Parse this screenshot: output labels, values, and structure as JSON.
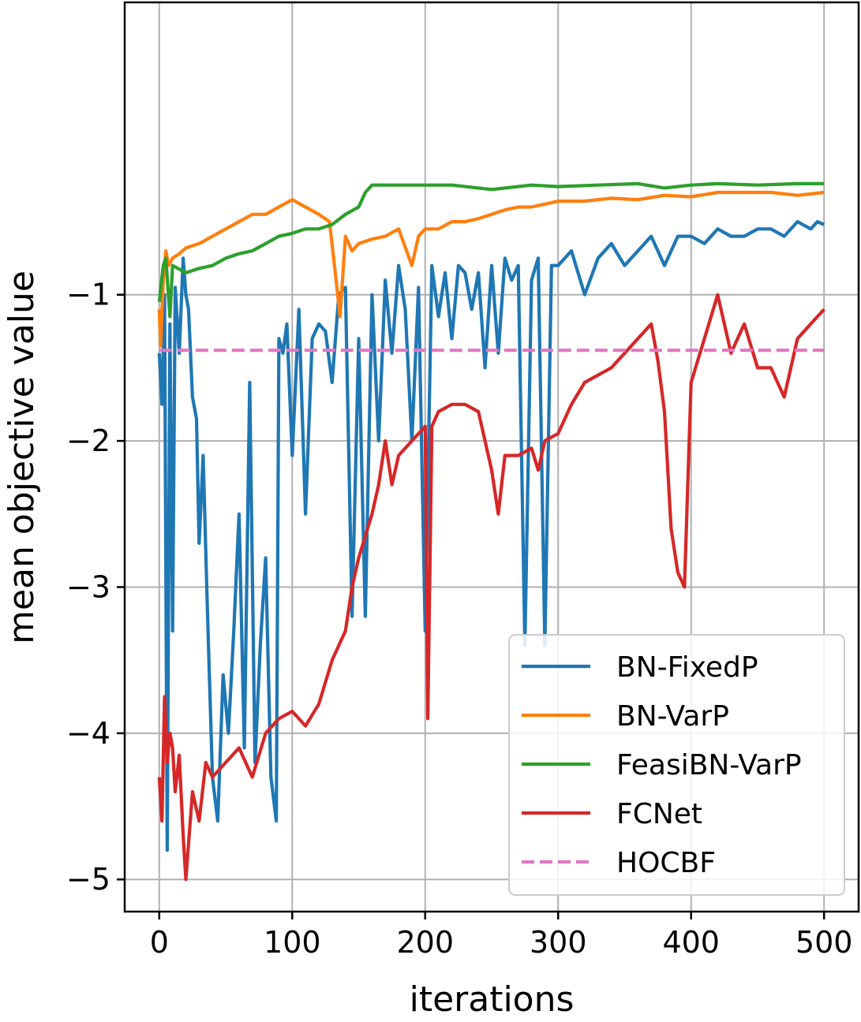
{
  "chart_data": {
    "type": "line",
    "title": "",
    "xlabel": "iterations",
    "ylabel": "mean objective value",
    "xlim": [
      -26,
      526
    ],
    "ylim": [
      -5.22,
      1.0
    ],
    "xticks": [
      0,
      100,
      200,
      300,
      400,
      500
    ],
    "xtick_labels": [
      "0",
      "100",
      "200",
      "300",
      "400",
      "500"
    ],
    "yticks": [
      -5,
      -4,
      -3,
      -2,
      -1
    ],
    "ytick_labels": [
      "−5",
      "−4",
      "−3",
      "−2",
      "−1"
    ],
    "grid": true,
    "legend_position": "lower right",
    "series": [
      {
        "name": "BN-FixedP",
        "color": "#1f77b4",
        "style": "solid",
        "x": [
          0,
          2,
          4,
          6,
          8,
          10,
          12,
          15,
          18,
          20,
          22,
          25,
          28,
          30,
          33,
          36,
          40,
          44,
          48,
          52,
          56,
          60,
          64,
          68,
          72,
          76,
          80,
          84,
          88,
          90,
          93,
          96,
          100,
          105,
          110,
          115,
          120,
          125,
          130,
          135,
          140,
          145,
          150,
          155,
          160,
          165,
          170,
          175,
          180,
          185,
          190,
          195,
          200,
          205,
          210,
          215,
          220,
          225,
          230,
          235,
          240,
          245,
          250,
          255,
          260,
          265,
          270,
          275,
          280,
          285,
          290,
          295,
          300,
          310,
          320,
          330,
          340,
          350,
          360,
          370,
          380,
          390,
          400,
          410,
          420,
          430,
          440,
          450,
          460,
          470,
          480,
          490,
          495,
          500
        ],
        "y": [
          -1.4,
          -1.75,
          -1.0,
          -4.8,
          -1.2,
          -3.3,
          -0.95,
          -1.4,
          -0.75,
          -1.0,
          -1.1,
          -1.7,
          -1.85,
          -2.7,
          -2.1,
          -3.1,
          -4.3,
          -4.6,
          -3.6,
          -4.0,
          -3.3,
          -2.5,
          -4.1,
          -1.6,
          -4.2,
          -3.4,
          -2.8,
          -4.3,
          -4.6,
          -1.3,
          -1.4,
          -1.2,
          -2.1,
          -1.1,
          -2.5,
          -1.3,
          -1.2,
          -1.25,
          -1.6,
          -1.0,
          -0.95,
          -3.2,
          -1.3,
          -3.2,
          -1.0,
          -2.0,
          -0.9,
          -1.4,
          -0.8,
          -1.1,
          -2.0,
          -0.95,
          -3.3,
          -0.8,
          -1.15,
          -0.85,
          -1.3,
          -0.8,
          -0.85,
          -1.1,
          -0.85,
          -1.5,
          -0.8,
          -1.4,
          -0.75,
          -0.9,
          -0.8,
          -3.4,
          -0.9,
          -0.75,
          -3.4,
          -0.8,
          -0.8,
          -0.7,
          -1.0,
          -0.75,
          -0.65,
          -0.8,
          -0.7,
          -0.6,
          -0.8,
          -0.6,
          -0.6,
          -0.65,
          -0.55,
          -0.6,
          -0.6,
          -0.55,
          -0.55,
          -0.6,
          -0.5,
          -0.55,
          -0.5,
          -0.52
        ]
      },
      {
        "name": "BN-VarP",
        "color": "#ff7f0e",
        "style": "solid",
        "x": [
          0,
          1,
          3,
          5,
          7,
          10,
          15,
          20,
          30,
          40,
          50,
          60,
          70,
          80,
          90,
          100,
          110,
          120,
          128,
          133,
          136,
          140,
          145,
          150,
          160,
          170,
          180,
          190,
          195,
          200,
          210,
          220,
          230,
          240,
          250,
          260,
          270,
          280,
          290,
          300,
          320,
          340,
          360,
          380,
          400,
          420,
          440,
          460,
          480,
          500
        ],
        "y": [
          -1.1,
          -1.35,
          -0.9,
          -0.7,
          -0.8,
          -0.75,
          -0.72,
          -0.68,
          -0.65,
          -0.6,
          -0.55,
          -0.5,
          -0.45,
          -0.45,
          -0.4,
          -0.35,
          -0.4,
          -0.45,
          -0.5,
          -0.9,
          -1.15,
          -0.6,
          -0.7,
          -0.65,
          -0.62,
          -0.6,
          -0.55,
          -0.8,
          -0.6,
          -0.55,
          -0.55,
          -0.5,
          -0.5,
          -0.48,
          -0.45,
          -0.42,
          -0.4,
          -0.4,
          -0.38,
          -0.36,
          -0.36,
          -0.34,
          -0.35,
          -0.32,
          -0.33,
          -0.3,
          -0.3,
          -0.3,
          -0.32,
          -0.3
        ]
      },
      {
        "name": "FeasiBN-VarP",
        "color": "#2ca02c",
        "style": "solid",
        "x": [
          0,
          3,
          5,
          8,
          10,
          20,
          30,
          40,
          50,
          60,
          70,
          80,
          90,
          100,
          110,
          120,
          130,
          140,
          150,
          155,
          160,
          170,
          180,
          200,
          220,
          250,
          280,
          300,
          330,
          360,
          380,
          400,
          420,
          450,
          480,
          500
        ],
        "y": [
          -1.05,
          -0.8,
          -0.75,
          -1.15,
          -0.8,
          -0.85,
          -0.82,
          -0.8,
          -0.75,
          -0.72,
          -0.7,
          -0.65,
          -0.6,
          -0.58,
          -0.55,
          -0.55,
          -0.52,
          -0.45,
          -0.4,
          -0.3,
          -0.25,
          -0.25,
          -0.25,
          -0.25,
          -0.25,
          -0.28,
          -0.25,
          -0.26,
          -0.25,
          -0.24,
          -0.27,
          -0.25,
          -0.24,
          -0.25,
          -0.24,
          -0.24
        ]
      },
      {
        "name": "FCNet",
        "color": "#d62728",
        "style": "solid",
        "x": [
          0,
          2,
          4,
          6,
          8,
          10,
          12,
          15,
          18,
          20,
          25,
          30,
          35,
          40,
          50,
          60,
          70,
          80,
          90,
          100,
          110,
          120,
          130,
          140,
          145,
          150,
          160,
          165,
          170,
          175,
          180,
          190,
          200,
          202,
          205,
          210,
          220,
          230,
          240,
          250,
          255,
          260,
          270,
          280,
          285,
          290,
          300,
          310,
          320,
          340,
          360,
          370,
          375,
          380,
          385,
          390,
          395,
          400,
          410,
          420,
          430,
          440,
          450,
          460,
          470,
          480,
          490,
          500
        ],
        "y": [
          -4.3,
          -4.6,
          -3.75,
          -4.2,
          -4.0,
          -4.1,
          -4.4,
          -4.15,
          -4.7,
          -5.0,
          -4.4,
          -4.6,
          -4.2,
          -4.3,
          -4.2,
          -4.1,
          -4.3,
          -4.0,
          -3.9,
          -3.85,
          -3.95,
          -3.8,
          -3.5,
          -3.3,
          -3.0,
          -2.8,
          -2.5,
          -2.3,
          -2.0,
          -2.3,
          -2.1,
          -2.0,
          -1.9,
          -3.9,
          -1.9,
          -1.8,
          -1.75,
          -1.75,
          -1.8,
          -2.2,
          -2.5,
          -2.1,
          -2.1,
          -2.05,
          -2.2,
          -2.0,
          -1.95,
          -1.75,
          -1.6,
          -1.5,
          -1.3,
          -1.2,
          -1.45,
          -1.8,
          -2.6,
          -2.9,
          -3.0,
          -1.6,
          -1.3,
          -1.0,
          -1.4,
          -1.2,
          -1.5,
          -1.5,
          -1.7,
          -1.3,
          -1.2,
          -1.1
        ]
      },
      {
        "name": "HOCBF",
        "color": "#e377c2",
        "style": "dashed",
        "x": [
          0,
          500
        ],
        "y": [
          -1.38,
          -1.38
        ]
      }
    ]
  }
}
